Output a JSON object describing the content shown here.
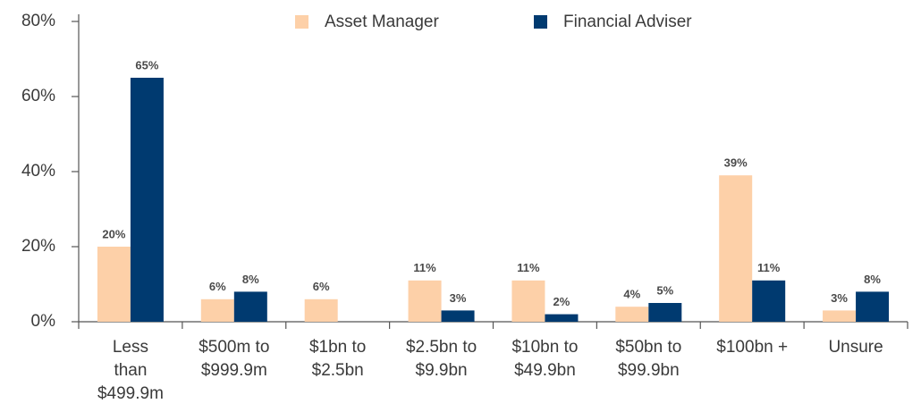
{
  "chart_data": {
    "type": "bar",
    "categories": [
      [
        "Less",
        "than",
        "$499.9m"
      ],
      [
        "$500m to",
        "$999.9m"
      ],
      [
        "$1bn to",
        "$2.5bn"
      ],
      [
        "$2.5bn to",
        "$9.9bn"
      ],
      [
        "$10bn to",
        "$49.9bn"
      ],
      [
        "$50bn to",
        "$99.9bn"
      ],
      [
        "$100bn +"
      ],
      [
        "Unsure"
      ]
    ],
    "series": [
      {
        "name": "Asset Manager",
        "color": "#fdd0a8",
        "values": [
          20,
          6,
          6,
          11,
          11,
          4,
          39,
          3
        ],
        "value_labels": [
          "20%",
          "6%",
          "6%",
          "11%",
          "11%",
          "4%",
          "39%",
          "3%"
        ]
      },
      {
        "name": "Financial Adviser",
        "color": "#003a70",
        "values": [
          65,
          8,
          null,
          3,
          2,
          5,
          11,
          8
        ],
        "value_labels": [
          "65%",
          "8%",
          null,
          "3%",
          "2%",
          "5%",
          "11%",
          "8%"
        ]
      }
    ],
    "ylim": [
      0,
      80
    ],
    "yticks": [
      {
        "value": 0,
        "label": "0%"
      },
      {
        "value": 20,
        "label": "20%"
      },
      {
        "value": 40,
        "label": "40%"
      },
      {
        "value": 60,
        "label": "60%"
      },
      {
        "value": 80,
        "label": "80%"
      }
    ],
    "legend": "top"
  }
}
